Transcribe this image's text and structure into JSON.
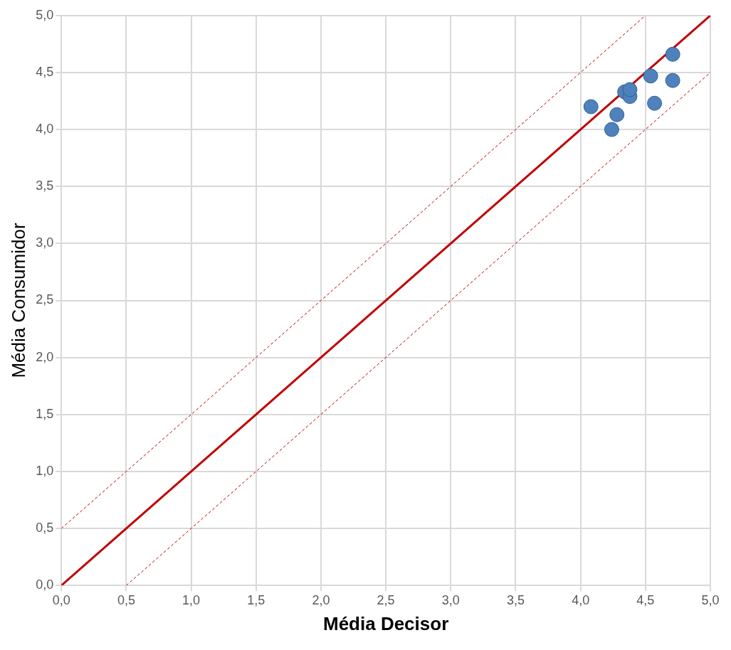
{
  "chart_data": {
    "type": "scatter",
    "xlabel": "Média Decisor",
    "ylabel": "Média Consumidor",
    "xlim": [
      0,
      5
    ],
    "ylim": [
      0,
      5
    ],
    "xticks": [
      {
        "value": 0,
        "label": "0,0"
      },
      {
        "value": 0.5,
        "label": "0,5"
      },
      {
        "value": 1,
        "label": "1,0"
      },
      {
        "value": 1.5,
        "label": "1,5"
      },
      {
        "value": 2,
        "label": "2,0"
      },
      {
        "value": 2.5,
        "label": "2,5"
      },
      {
        "value": 3,
        "label": "3,0"
      },
      {
        "value": 3.5,
        "label": "3,5"
      },
      {
        "value": 4,
        "label": "4,0"
      },
      {
        "value": 4.5,
        "label": "4,5"
      },
      {
        "value": 5,
        "label": "5,0"
      }
    ],
    "yticks": [
      {
        "value": 0,
        "label": "0,0"
      },
      {
        "value": 0.5,
        "label": "0,5"
      },
      {
        "value": 1,
        "label": "1,0"
      },
      {
        "value": 1.5,
        "label": "1,5"
      },
      {
        "value": 2,
        "label": "2,0"
      },
      {
        "value": 2.5,
        "label": "2,5"
      },
      {
        "value": 3,
        "label": "3,0"
      },
      {
        "value": 3.5,
        "label": "3,5"
      },
      {
        "value": 4,
        "label": "4,0"
      },
      {
        "value": 4.5,
        "label": "4,5"
      },
      {
        "value": 5,
        "label": "5,0"
      }
    ],
    "grid": true,
    "legend": false,
    "series": [
      {
        "marker": "circle",
        "color": "#4f81bd",
        "x": [
          4.08,
          4.24,
          4.28,
          4.34,
          4.38,
          4.38,
          4.54,
          4.57,
          4.71,
          4.71
        ],
        "values": [
          4.2,
          4.0,
          4.13,
          4.33,
          4.29,
          4.35,
          4.47,
          4.23,
          4.66,
          4.43
        ]
      },
      {
        "type": "line",
        "marker": "none",
        "color": "#c00000",
        "line_style": "solid",
        "x": [
          0,
          5
        ],
        "values": [
          0,
          5
        ]
      },
      {
        "type": "line",
        "marker": "none",
        "color": "#c00000",
        "line_style": "dashed",
        "x": [
          0,
          4.5
        ],
        "values": [
          0.5,
          5
        ]
      },
      {
        "type": "line",
        "marker": "none",
        "color": "#c00000",
        "line_style": "dashed",
        "x": [
          0.5,
          5
        ],
        "values": [
          0,
          4.5
        ]
      }
    ]
  }
}
